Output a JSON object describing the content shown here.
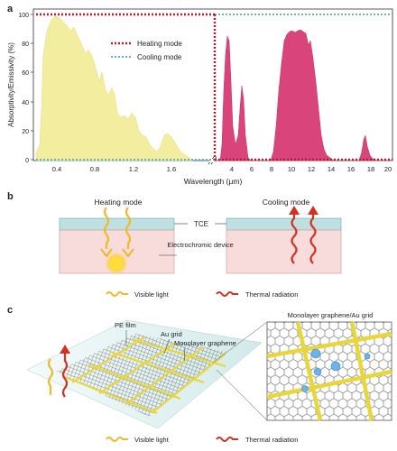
{
  "panel_a": {
    "label": "a",
    "y_axis_label": "Absorptivity/Emissivity (%)",
    "x_axis_label": "Wavelength (μm)",
    "y_ticks": [
      "0",
      "20",
      "40",
      "60",
      "80",
      "100"
    ],
    "x_ticks_left": [
      "0.4",
      "0.8",
      "1.2",
      "1.6"
    ],
    "x_ticks_right": [
      "4",
      "6",
      "8",
      "10",
      "12",
      "14",
      "16",
      "18",
      "20"
    ],
    "legend": {
      "heating": "Heating mode",
      "cooling": "Cooling mode"
    },
    "colors": {
      "visible_fill": "#f3eda0",
      "ir_fill": "#d9457a",
      "heating_line": "#c0182b",
      "cooling_line": "#5fb8b8"
    }
  },
  "panel_b": {
    "label": "b",
    "heating_title": "Heating mode",
    "cooling_title": "Cooling mode",
    "tce_label": "TCE",
    "device_label": "Electrochromic device",
    "legend_visible": "Visible light",
    "legend_thermal": "Thermal radiation"
  },
  "panel_c": {
    "label": "c",
    "pe_film": "PE film",
    "au_grid": "Au grid",
    "graphene": "Monolayer graphene",
    "zoom_title": "Monolayer graphene/Au grid",
    "legend_visible": "Visible light",
    "legend_thermal": "Thermal radiation"
  }
}
